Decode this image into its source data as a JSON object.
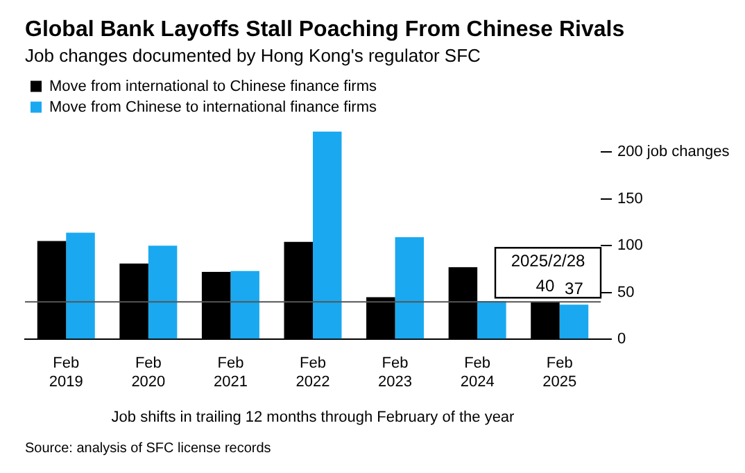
{
  "chart_data": {
    "type": "bar",
    "title": "Global Bank Layoffs Stall Poaching From Chinese Rivals",
    "subtitle": "Job changes documented by Hong Kong's regulator SFC",
    "xlabel": "Job shifts in trailing 12 months through February of the year",
    "categories": [
      "Feb 2019",
      "Feb 2020",
      "Feb 2021",
      "Feb 2022",
      "Feb 2023",
      "Feb 2024",
      "Feb 2025"
    ],
    "series": [
      {
        "name": "Move from international to Chinese finance firms",
        "color": "#000000",
        "values": [
          105,
          81,
          72,
          104,
          45,
          77,
          40
        ],
        "value_labels": [
          null,
          null,
          null,
          null,
          null,
          null,
          "40"
        ]
      },
      {
        "name": "Move from Chinese to international finance firms",
        "color": "#1aa9f0",
        "values": [
          114,
          100,
          73,
          222,
          109,
          41,
          37
        ],
        "value_labels": [
          null,
          null,
          null,
          null,
          null,
          null,
          "37"
        ]
      }
    ],
    "ylim": [
      0,
      225
    ],
    "yticks": [
      0,
      50,
      100,
      150,
      {
        "value": 200,
        "label": "200 job changes"
      }
    ],
    "grid": false,
    "legend": "top left",
    "ref_lines": [
      {
        "axis": "y",
        "value": 40,
        "color": "#555555"
      }
    ],
    "annotations": [
      "2025/2/28",
      "Source: analysis of SFC license records"
    ]
  }
}
